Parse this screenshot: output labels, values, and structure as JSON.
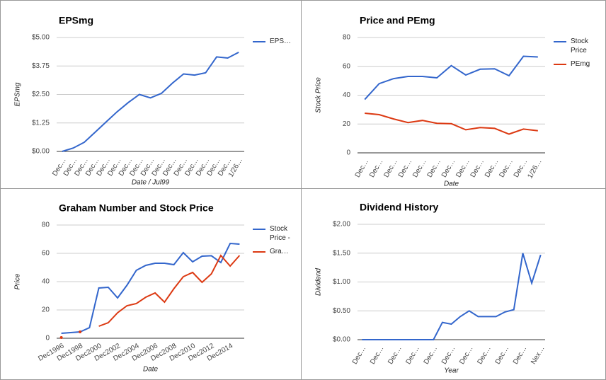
{
  "chart_data": [
    {
      "type": "line",
      "title": "EPSmg",
      "x_label": "Date / Jul99",
      "y_label": "EPSmg",
      "categories": [
        "Dec…",
        "Dec…",
        "Dec…",
        "Dec…",
        "Dec…",
        "Dec…",
        "Dec…",
        "Dec…",
        "Dec…",
        "Dec…",
        "Dec…",
        "Dec…",
        "Dec…",
        "Dec…",
        "Dec…",
        "Dec…",
        "1/26…"
      ],
      "series": [
        {
          "name": "EPS…",
          "color": "#3366cc",
          "values": [
            0,
            0.15,
            0.4,
            0.85,
            1.3,
            1.75,
            2.15,
            2.5,
            2.35,
            2.55,
            3.0,
            3.4,
            3.35,
            3.45,
            4.15,
            4.1,
            4.35
          ]
        }
      ],
      "ylim": [
        0,
        5
      ],
      "yticks": [
        {
          "value": 0,
          "label": "$0.00"
        },
        {
          "value": 1.25,
          "label": "$1.25"
        },
        {
          "value": 2.5,
          "label": "$2.50"
        },
        {
          "value": 3.75,
          "label": "$3.75"
        },
        {
          "value": 5,
          "label": "$5.00"
        }
      ],
      "grid": true,
      "legend": "right"
    },
    {
      "type": "line",
      "title": "Price and PEmg",
      "x_label": "Date",
      "y_label": "Stock Price",
      "categories": [
        "Dec…",
        "Dec…",
        "Dec…",
        "Dec…",
        "Dec…",
        "Dec…",
        "Dec…",
        "Dec…",
        "Dec…",
        "Dec…",
        "Dec…",
        "Dec…",
        "1/26…"
      ],
      "series": [
        {
          "name": "Stock Price",
          "color": "#3366cc",
          "values": [
            37,
            48,
            51.5,
            53,
            53,
            52,
            60.5,
            54,
            58,
            58.3,
            53.5,
            67,
            66.5
          ]
        },
        {
          "name": "PEmg",
          "color": "#dc3912",
          "values": [
            27.5,
            26.5,
            23.5,
            21,
            22.5,
            20.5,
            20.2,
            16,
            17.5,
            17,
            13,
            16.5,
            15.3
          ]
        }
      ],
      "ylim": [
        0,
        80
      ],
      "yticks": [
        0,
        20,
        40,
        60,
        80
      ],
      "grid": true,
      "legend": "right"
    },
    {
      "type": "line",
      "title": "Graham Number and Stock Price",
      "x_label": "Date",
      "y_label": "Price",
      "categories": [
        "Dec1996",
        null,
        "Dec1998",
        null,
        "Dec2000",
        null,
        "Dec2002",
        null,
        "Dec2004",
        null,
        "Dec2006",
        null,
        "Dec2008",
        null,
        "Dec2010",
        null,
        "Dec2012",
        null,
        "Dec2014",
        null
      ],
      "series": [
        {
          "name": "Stock Price -",
          "color": "#3366cc",
          "values": [
            3.5,
            4,
            4.5,
            7.5,
            35.5,
            36,
            28.5,
            37.5,
            48,
            51.5,
            53,
            53,
            52,
            60.5,
            54,
            58,
            58.3,
            53.5,
            67,
            66.5
          ]
        },
        {
          "name": "Gra…",
          "color": "#dc3912",
          "values": [
            0.5,
            null,
            4.5,
            null,
            8.5,
            11,
            18,
            23,
            24.5,
            29,
            32,
            25.5,
            35,
            43.5,
            46.5,
            39.5,
            45.5,
            58.5,
            51,
            58.5
          ]
        }
      ],
      "ylim": [
        0,
        80
      ],
      "yticks": [
        0,
        20,
        40,
        60,
        80
      ],
      "grid": true,
      "legend": "right"
    },
    {
      "type": "line",
      "title": "Dividend History",
      "x_label": "Year",
      "y_label": "Dividend",
      "categories": [
        "Dec…",
        null,
        "Dec…",
        null,
        "Dec…",
        null,
        "Dec…",
        null,
        "Dec…",
        null,
        "Dec…",
        null,
        "Dec…",
        null,
        "Dec…",
        null,
        "Dec…",
        null,
        "Dec…",
        null,
        "Nex…"
      ],
      "series": [
        {
          "color": "#3366cc",
          "values": [
            0,
            0,
            0,
            0,
            0,
            0,
            0,
            0,
            0,
            0.3,
            0.27,
            0.4,
            0.5,
            0.4,
            0.4,
            0.4,
            0.48,
            0.52,
            1.5,
            0.98,
            1.47
          ]
        }
      ],
      "ylim": [
        0,
        2
      ],
      "yticks": [
        {
          "value": 0,
          "label": "$0.00"
        },
        {
          "value": 0.5,
          "label": "$0.50"
        },
        {
          "value": 1,
          "label": "$1.00"
        },
        {
          "value": 1.5,
          "label": "$1.50"
        },
        {
          "value": 2,
          "label": "$2.00"
        }
      ],
      "grid": true
    }
  ]
}
